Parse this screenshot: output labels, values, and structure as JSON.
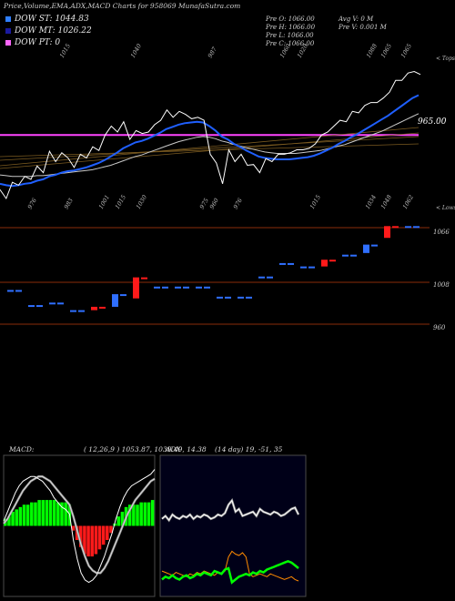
{
  "header": {
    "title": "Price,Volume,EMA,ADX,MACD Charts for 958069 MunafaSutra.com"
  },
  "legend": [
    {
      "label": "DOW ST: 1044.83",
      "color": "#2f7fff"
    },
    {
      "label": "DOW MT: 1026.22",
      "color": "#1a1aa0"
    },
    {
      "label": "DOW PT: 0",
      "color": "#ff66ff"
    }
  ],
  "stats": {
    "col1": [
      "Pre  O: 1066.00",
      "Pre  H: 1066.00",
      "Pre  L: 1066.00",
      "Pre  C: 1066.00"
    ],
    "col2": [
      "Avg V: 0  M",
      "Pre  V: 0.001 M"
    ]
  },
  "colors": {
    "up": "#2f6fff",
    "down": "#ff1a1a",
    "ema_short": "#1f5fff",
    "dow_pt": "#ff44ff",
    "threshold": "#8a2b0a"
  },
  "chart_data": [
    {
      "type": "line",
      "name": "price-ema",
      "top_labels": [
        "1015",
        "1040",
        "987",
        "1060",
        "1020",
        "1088",
        "1065",
        "1065"
      ],
      "top_label_x": [
        69,
        147,
        232,
        311,
        330,
        406,
        422,
        444
      ],
      "bottom_labels": [
        "976",
        "983",
        "1001",
        "1015",
        "1030",
        "975",
        "960",
        "976",
        "1015",
        "1034",
        "1048",
        "1062"
      ],
      "bottom_label_x": [
        40,
        80,
        118,
        136,
        159,
        229,
        240,
        266,
        350,
        411,
        428,
        452
      ],
      "right_labels": [
        "< Tops",
        "965.00",
        "< Lows"
      ],
      "price_max_label": "965.00",
      "close_series": [
        952,
        940,
        962,
        958,
        970,
        966,
        984,
        975,
        1004,
        990,
        1002,
        995,
        982,
        1000,
        995,
        1010,
        1005,
        1026,
        1038,
        1030,
        1044,
        1020,
        1032,
        1028,
        1030,
        1040,
        1046,
        1060,
        1050,
        1058,
        1054,
        1048,
        1050,
        1046,
        1000,
        988,
        960,
        1006,
        990,
        1000,
        985,
        986,
        975,
        994,
        990,
        1000,
        1000,
        1002,
        1006,
        1006,
        1008,
        1014,
        1026,
        1030,
        1038,
        1046,
        1044,
        1058,
        1056,
        1066,
        1070,
        1070,
        1076,
        1084,
        1100,
        1100,
        1110,
        1112,
        1108
      ],
      "ema_fast": [
        960,
        958,
        957,
        958,
        960,
        961,
        964,
        966,
        970,
        972,
        975,
        977,
        978,
        980,
        982,
        985,
        988,
        992,
        997,
        1002,
        1008,
        1012,
        1016,
        1018,
        1021,
        1025,
        1029,
        1034,
        1037,
        1040,
        1042,
        1043,
        1044,
        1043,
        1038,
        1032,
        1024,
        1020,
        1014,
        1010,
        1005,
        1001,
        997,
        995,
        994,
        993,
        993,
        993,
        994,
        995,
        996,
        998,
        1001,
        1005,
        1009,
        1014,
        1018,
        1023,
        1027,
        1032,
        1037,
        1042,
        1047,
        1052,
        1058,
        1064,
        1070,
        1076,
        1080
      ],
      "ema_slow": [
        972,
        971,
        970,
        970,
        970,
        970,
        971,
        971,
        972,
        973,
        974,
        975,
        976,
        977,
        978,
        979,
        981,
        983,
        985,
        988,
        991,
        994,
        997,
        999,
        1002,
        1005,
        1008,
        1011,
        1014,
        1017,
        1019,
        1021,
        1023,
        1024,
        1023,
        1021,
        1018,
        1016,
        1013,
        1011,
        1009,
        1007,
        1005,
        1003,
        1002,
        1001,
        1001,
        1001,
        1001,
        1002,
        1003,
        1004,
        1005,
        1007,
        1009,
        1011,
        1013,
        1016,
        1019,
        1022,
        1025,
        1028,
        1031,
        1035,
        1039,
        1043,
        1047,
        1051,
        1055
      ],
      "dow_pt_level": 1026,
      "ylim": [
        940,
        1125
      ]
    },
    {
      "type": "candlestick",
      "name": "weekly-candles",
      "right_labels": [
        "1066",
        "1008",
        "960"
      ],
      "candles": [
        {
          "o": 990,
          "c": 990,
          "up": true
        },
        {
          "o": 972,
          "c": 972,
          "up": true
        },
        {
          "o": 975,
          "c": 975,
          "up": true
        },
        {
          "o": 966,
          "c": 966,
          "up": true
        },
        {
          "o": 970,
          "c": 966,
          "up": false
        },
        {
          "o": 970,
          "c": 985,
          "up": true
        },
        {
          "o": 1005,
          "c": 980,
          "up": false
        },
        {
          "o": 994,
          "c": 994,
          "up": true
        },
        {
          "o": 994,
          "c": 994,
          "up": true
        },
        {
          "o": 994,
          "c": 994,
          "up": true
        },
        {
          "o": 982,
          "c": 982,
          "up": true
        },
        {
          "o": 982,
          "c": 982,
          "up": true
        },
        {
          "o": 1006,
          "c": 1006,
          "up": true
        },
        {
          "o": 1022,
          "c": 1022,
          "up": true
        },
        {
          "o": 1018,
          "c": 1018,
          "up": true
        },
        {
          "o": 1026,
          "c": 1018,
          "up": false
        },
        {
          "o": 1032,
          "c": 1032,
          "up": true
        },
        {
          "o": 1034,
          "c": 1044,
          "up": true
        },
        {
          "o": 1066,
          "c": 1052,
          "up": false
        },
        {
          "o": 1066,
          "c": 1066,
          "up": true
        }
      ],
      "ylim": [
        945,
        1075
      ]
    },
    {
      "type": "bar",
      "name": "macd",
      "label": "MACD:",
      "params": "( 12,26,9 ) 1053.87,  1039.49,  14.38",
      "hist": [
        3,
        4,
        6,
        7,
        8,
        9,
        9,
        10,
        10,
        11,
        11,
        11,
        11,
        11,
        10,
        10,
        10,
        9,
        -2,
        -6,
        -9,
        -12,
        -13,
        -13,
        -12,
        -10,
        -8,
        -6,
        -3,
        1,
        4,
        6,
        8,
        9,
        9,
        9,
        10,
        10,
        10,
        11
      ],
      "macd_line": [
        2,
        6,
        10,
        14,
        17,
        19,
        20,
        21,
        21,
        20,
        19,
        17,
        15,
        12,
        10,
        8,
        7,
        5,
        -6,
        -14,
        -20,
        -23,
        -24,
        -23,
        -21,
        -17,
        -13,
        -8,
        -3,
        3,
        8,
        12,
        15,
        17,
        18,
        19,
        20,
        21,
        22,
        24
      ],
      "signal_line": [
        1,
        3,
        6,
        9,
        12,
        15,
        17,
        19,
        20,
        21,
        21,
        20,
        19,
        17,
        15,
        13,
        11,
        9,
        4,
        -2,
        -8,
        -13,
        -17,
        -19,
        -20,
        -20,
        -18,
        -15,
        -11,
        -7,
        -3,
        1,
        5,
        8,
        11,
        13,
        15,
        17,
        19,
        20
      ],
      "ylim": [
        -30,
        30
      ]
    },
    {
      "type": "line",
      "name": "adx",
      "label": "ADX",
      "params": "(14  day) 19,  -51,  35",
      "adx": [
        55,
        57,
        54,
        58,
        56,
        55,
        57,
        56,
        58,
        55,
        57,
        56,
        58,
        57,
        55,
        56,
        58,
        57,
        59,
        65,
        68,
        60,
        62,
        57,
        58,
        59,
        60,
        57,
        62,
        60,
        59,
        58,
        60,
        59,
        57,
        58,
        60,
        62,
        63,
        58
      ],
      "plus_di": [
        12,
        14,
        13,
        15,
        13,
        12,
        14,
        15,
        13,
        14,
        16,
        15,
        17,
        16,
        15,
        18,
        17,
        16,
        19,
        20,
        10,
        12,
        14,
        15,
        16,
        15,
        17,
        16,
        18,
        17,
        19,
        20,
        21,
        22,
        23,
        24,
        25,
        24,
        22,
        20
      ],
      "minus_di": [
        18,
        17,
        16,
        15,
        17,
        16,
        15,
        14,
        16,
        15,
        17,
        16,
        18,
        17,
        16,
        15,
        17,
        16,
        18,
        28,
        32,
        30,
        29,
        31,
        28,
        16,
        14,
        15,
        16,
        15,
        14,
        16,
        15,
        14,
        13,
        12,
        13,
        14,
        12,
        11
      ],
      "ylim": [
        0,
        100
      ]
    }
  ]
}
